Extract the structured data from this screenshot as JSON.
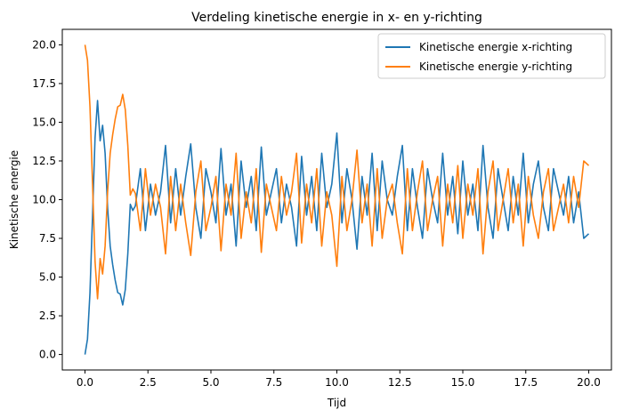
{
  "chart_data": {
    "type": "line",
    "title": "Verdeling kinetische energie in x- en y-richting",
    "xlabel": "Tijd",
    "ylabel": "Kinetische energie",
    "xlim": [
      -0.9,
      20.9
    ],
    "ylim": [
      -1.0,
      21.0
    ],
    "xticks": [
      0.0,
      2.5,
      5.0,
      7.5,
      10.0,
      12.5,
      15.0,
      17.5,
      20.0
    ],
    "xtick_labels": [
      "0.0",
      "2.5",
      "5.0",
      "7.5",
      "10.0",
      "12.5",
      "15.0",
      "17.5",
      "20.0"
    ],
    "yticks": [
      0.0,
      2.5,
      5.0,
      7.5,
      10.0,
      12.5,
      15.0,
      17.5,
      20.0
    ],
    "ytick_labels": [
      "0.0",
      "2.5",
      "5.0",
      "7.5",
      "10.0",
      "12.5",
      "15.0",
      "17.5",
      "20.0"
    ],
    "grid": false,
    "legend_position": "top-right",
    "series": [
      {
        "name": "Kinetische energie x-richting",
        "color": "#1f77b4",
        "x": [
          0.0,
          0.1,
          0.2,
          0.3,
          0.4,
          0.5,
          0.6,
          0.7,
          0.8,
          0.9,
          1.0,
          1.1,
          1.2,
          1.3,
          1.4,
          1.5,
          1.6,
          1.7,
          1.8,
          1.9,
          2.0,
          2.2,
          2.4,
          2.6,
          2.8,
          3.0,
          3.2,
          3.4,
          3.6,
          3.8,
          4.0,
          4.2,
          4.4,
          4.6,
          4.8,
          5.0,
          5.2,
          5.4,
          5.6,
          5.8,
          6.0,
          6.2,
          6.4,
          6.6,
          6.8,
          7.0,
          7.2,
          7.4,
          7.6,
          7.8,
          8.0,
          8.2,
          8.4,
          8.6,
          8.8,
          9.0,
          9.2,
          9.4,
          9.6,
          9.8,
          10.0,
          10.2,
          10.4,
          10.6,
          10.8,
          11.0,
          11.2,
          11.4,
          11.6,
          11.8,
          12.0,
          12.2,
          12.4,
          12.6,
          12.8,
          13.0,
          13.2,
          13.4,
          13.6,
          13.8,
          14.0,
          14.2,
          14.4,
          14.6,
          14.8,
          15.0,
          15.2,
          15.4,
          15.6,
          15.8,
          16.0,
          16.2,
          16.4,
          16.6,
          16.8,
          17.0,
          17.2,
          17.4,
          17.6,
          17.8,
          18.0,
          18.2,
          18.4,
          18.6,
          18.8,
          19.0,
          19.2,
          19.4,
          19.6,
          19.8,
          20.0
        ],
        "y": [
          0.0,
          1.0,
          4.0,
          9.0,
          14.0,
          16.4,
          13.8,
          14.8,
          13.0,
          9.5,
          7.0,
          5.8,
          4.8,
          4.0,
          3.9,
          3.2,
          4.2,
          6.5,
          9.7,
          9.3,
          9.6,
          12.0,
          8.0,
          11.0,
          9.0,
          10.5,
          13.5,
          8.5,
          12.0,
          9.0,
          11.5,
          13.6,
          9.5,
          7.5,
          12.0,
          10.5,
          8.5,
          13.3,
          9.0,
          11.0,
          7.0,
          12.5,
          9.5,
          11.5,
          8.0,
          13.4,
          9.0,
          10.5,
          12.0,
          8.5,
          11.0,
          9.5,
          7.0,
          12.8,
          9.0,
          11.5,
          8.0,
          13.0,
          9.5,
          11.0,
          14.3,
          8.5,
          12.0,
          10.0,
          6.8,
          11.5,
          9.0,
          13.0,
          8.0,
          12.5,
          10.0,
          9.0,
          11.5,
          13.5,
          8.0,
          12.0,
          9.5,
          7.5,
          12.0,
          10.0,
          8.5,
          13.0,
          9.0,
          11.5,
          7.8,
          12.5,
          9.0,
          11.0,
          8.0,
          13.5,
          9.5,
          7.5,
          12.0,
          10.0,
          8.0,
          11.5,
          9.0,
          13.0,
          8.5,
          11.0,
          12.5,
          9.5,
          8.0,
          12.0,
          10.5,
          9.0,
          11.5,
          8.5,
          10.5,
          7.5,
          7.8
        ]
      },
      {
        "name": "Kinetische energie y-richting",
        "color": "#ff7f0e",
        "x": [
          0.0,
          0.1,
          0.2,
          0.3,
          0.4,
          0.5,
          0.6,
          0.7,
          0.8,
          0.9,
          1.0,
          1.1,
          1.2,
          1.3,
          1.4,
          1.5,
          1.6,
          1.7,
          1.8,
          1.9,
          2.0,
          2.2,
          2.4,
          2.6,
          2.8,
          3.0,
          3.2,
          3.4,
          3.6,
          3.8,
          4.0,
          4.2,
          4.4,
          4.6,
          4.8,
          5.0,
          5.2,
          5.4,
          5.6,
          5.8,
          6.0,
          6.2,
          6.4,
          6.6,
          6.8,
          7.0,
          7.2,
          7.4,
          7.6,
          7.8,
          8.0,
          8.2,
          8.4,
          8.6,
          8.8,
          9.0,
          9.2,
          9.4,
          9.6,
          9.8,
          10.0,
          10.2,
          10.4,
          10.6,
          10.8,
          11.0,
          11.2,
          11.4,
          11.6,
          11.8,
          12.0,
          12.2,
          12.4,
          12.6,
          12.8,
          13.0,
          13.2,
          13.4,
          13.6,
          13.8,
          14.0,
          14.2,
          14.4,
          14.6,
          14.8,
          15.0,
          15.2,
          15.4,
          15.6,
          15.8,
          16.0,
          16.2,
          16.4,
          16.6,
          16.8,
          17.0,
          17.2,
          17.4,
          17.6,
          17.8,
          18.0,
          18.2,
          18.4,
          18.6,
          18.8,
          19.0,
          19.2,
          19.4,
          19.6,
          19.8,
          20.0
        ],
        "y": [
          20.0,
          19.0,
          16.0,
          11.0,
          6.0,
          3.6,
          6.2,
          5.2,
          7.0,
          10.5,
          13.0,
          14.2,
          15.2,
          16.0,
          16.1,
          16.8,
          15.8,
          13.5,
          10.3,
          10.7,
          10.4,
          8.0,
          12.0,
          9.0,
          11.0,
          9.5,
          6.5,
          11.5,
          8.0,
          11.0,
          8.5,
          6.4,
          10.5,
          12.5,
          8.0,
          9.5,
          11.5,
          6.7,
          11.0,
          9.0,
          13.0,
          7.5,
          10.5,
          8.5,
          12.0,
          6.6,
          11.0,
          9.5,
          8.0,
          11.5,
          9.0,
          10.5,
          13.0,
          7.2,
          11.0,
          8.5,
          12.0,
          7.0,
          10.5,
          9.0,
          5.7,
          11.5,
          8.0,
          10.0,
          13.2,
          8.5,
          11.0,
          7.0,
          12.0,
          7.5,
          10.0,
          11.0,
          8.5,
          6.5,
          12.0,
          8.0,
          10.5,
          12.5,
          8.0,
          10.0,
          11.5,
          7.0,
          11.0,
          8.5,
          12.2,
          7.5,
          11.0,
          9.0,
          12.0,
          6.5,
          10.5,
          12.5,
          8.0,
          10.0,
          12.0,
          8.5,
          11.0,
          7.0,
          11.5,
          9.0,
          7.5,
          10.5,
          12.0,
          8.0,
          9.5,
          11.0,
          8.5,
          11.5,
          9.5,
          12.5,
          12.2
        ]
      }
    ]
  }
}
